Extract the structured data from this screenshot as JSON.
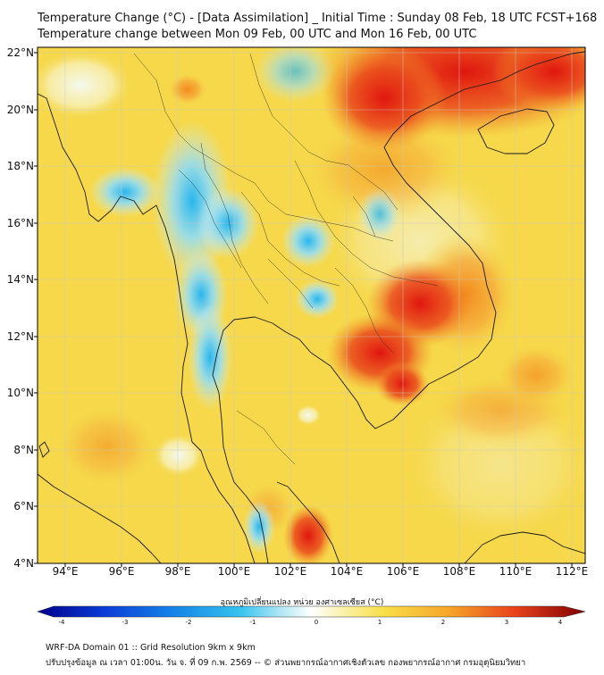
{
  "title_line1": "Temperature Change (°C) - [Data Assimilation] _ Initial Time : Sunday 08 Feb, 18 UTC FCST+168",
  "title_line2": "Temperature change between Mon 09 Feb, 00 UTC and Mon 16 Feb, 00 UTC",
  "map": {
    "lon_range": [
      93,
      112.5
    ],
    "lat_range": [
      4,
      22.2
    ],
    "lat_ticks": [
      "22°N",
      "20°N",
      "18°N",
      "16°N",
      "14°N",
      "12°N",
      "10°N",
      "8°N",
      "6°N",
      "4°N"
    ],
    "lon_ticks": [
      "94°E",
      "96°E",
      "98°E",
      "100°E",
      "102°E",
      "104°E",
      "106°E",
      "108°E",
      "110°E",
      "112°E"
    ],
    "background_color": "#f6d84a",
    "colors": {
      "cold_region": "#6fd0f0",
      "neutral": "#eaf6fa",
      "warm_region": "#f7a434",
      "hot_region": "#e8321a"
    }
  },
  "colorbar": {
    "label": "อุณหภูมิเปลี่ยนแปลง หน่วย องศาเซลเซียส (°C)",
    "ticks": [
      "-4",
      "-3",
      "-2",
      "-1",
      "0",
      "1",
      "2",
      "3",
      "4"
    ],
    "range": [
      -4,
      4
    ]
  },
  "footer_line1": "WRF-DA Domain 01 :: Grid Resolution 9km x 9km",
  "footer_line2": "ปรับปรุงข้อมูล ณ เวลา 01:00น. วัน จ. ที่ 09 ก.พ. 2569 -- © ส่วนพยากรณ์อากาศเชิงตัวเลข กองพยากรณ์อากาศ กรมอุตุนิยมวิทยา"
}
